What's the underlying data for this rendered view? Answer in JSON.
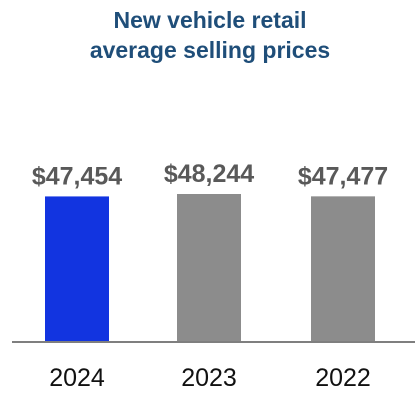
{
  "chart_data": {
    "type": "bar",
    "title_line1": "New vehicle retail",
    "title_line2": "average selling prices",
    "categories": [
      "2024",
      "2023",
      "2022"
    ],
    "values": [
      47454,
      48244,
      47477
    ],
    "value_labels": [
      "$47,454",
      "$48,244",
      "$47,477"
    ],
    "bar_colors": [
      "#1234e0",
      "#8c8c8c",
      "#8c8c8c"
    ],
    "title_color": "#1f4e79",
    "axis_color": "#7f7f7f",
    "grid": false,
    "legend": "none"
  }
}
